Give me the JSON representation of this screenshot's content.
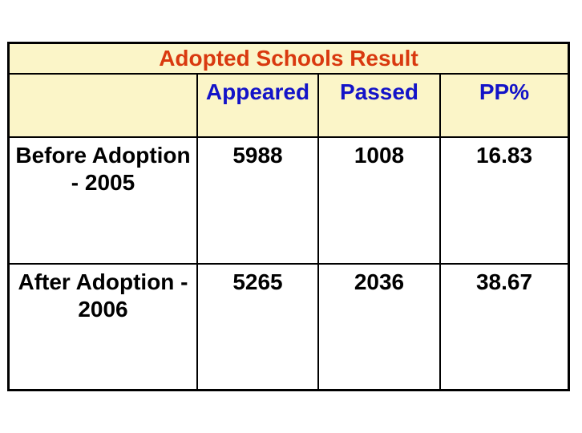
{
  "colors": {
    "page_bg": "#ffffff",
    "cell_yellow": "#fbf5c8",
    "title_red": "#d9390f",
    "header_blue": "#1313c8",
    "body_black": "#000000",
    "border_black": "#000000"
  },
  "table": {
    "title": "Adopted Schools Result",
    "columns": [
      "",
      "Appeared",
      "Passed",
      "PP%"
    ],
    "rows": [
      {
        "label_lines": [
          "Before Adoption",
          "- 2005"
        ],
        "appeared": "5988",
        "passed": "1008",
        "pp_percent": "16.83"
      },
      {
        "label_lines": [
          "After Adoption -",
          "2006"
        ],
        "appeared": "5265",
        "passed": "2036",
        "pp_percent": "38.67"
      }
    ]
  },
  "chart_data": {
    "type": "table",
    "title": "Adopted Schools Result",
    "columns": [
      "",
      "Appeared",
      "Passed",
      "PP%"
    ],
    "rows": [
      [
        "Before Adoption - 2005",
        5988,
        1008,
        16.83
      ],
      [
        "After Adoption - 2006",
        5265,
        2036,
        38.67
      ]
    ]
  }
}
